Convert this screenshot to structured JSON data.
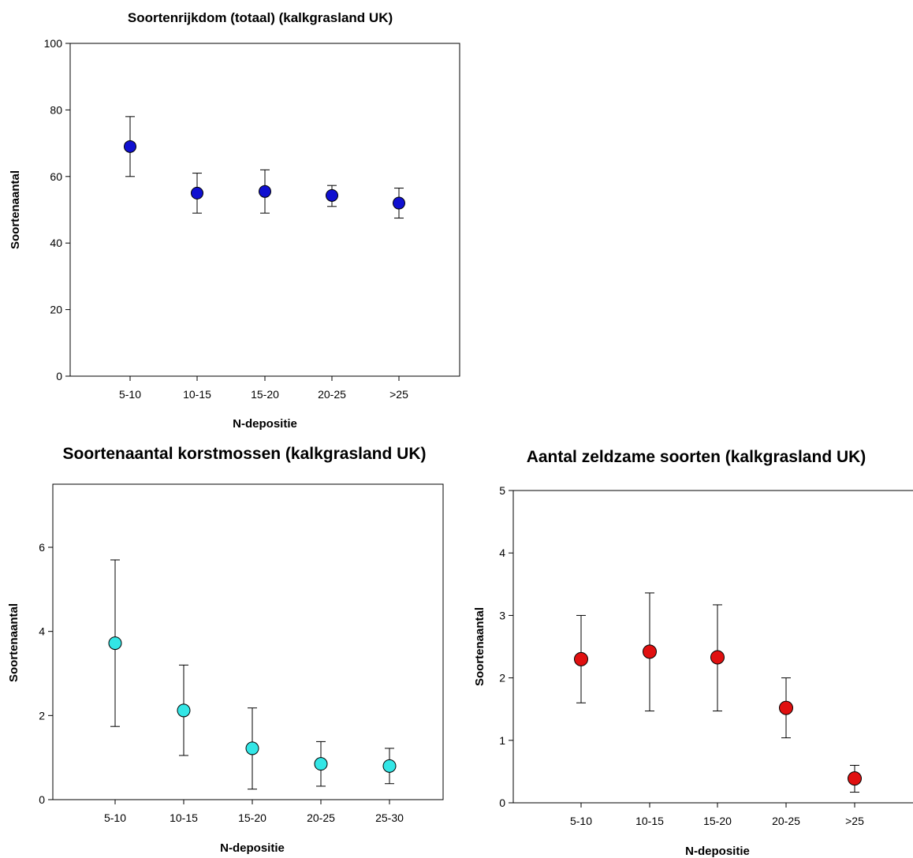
{
  "chart_data": [
    {
      "type": "scatter",
      "title": "Soortenrijkdom (totaal) (kalkgrasland UK)",
      "xlabel": "N-depositie",
      "ylabel": "Soortenaantal",
      "categories": [
        "5-10",
        "10-15",
        "15-20",
        "20-25",
        ">25"
      ],
      "values": [
        69,
        55,
        55.5,
        54.3,
        52
      ],
      "error_low": [
        60,
        49,
        49,
        51,
        47.5
      ],
      "error_high": [
        78,
        61,
        62,
        57.3,
        56.5
      ],
      "ylim": [
        0,
        100
      ],
      "yticks": [
        0,
        20,
        40,
        60,
        80,
        100
      ],
      "marker_color": "#1010d0",
      "grid": false
    },
    {
      "type": "scatter",
      "title": "Soortenaantal korstmossen (kalkgrasland UK)",
      "xlabel": "N-depositie",
      "ylabel": "Soortenaantal",
      "categories": [
        "5-10",
        "10-15",
        "15-20",
        "20-25",
        "25-30"
      ],
      "values": [
        3.72,
        2.12,
        1.22,
        0.85,
        0.8
      ],
      "error_low": [
        1.74,
        1.05,
        0.25,
        0.32,
        0.38
      ],
      "error_high": [
        5.7,
        3.2,
        2.18,
        1.38,
        1.22
      ],
      "ylim": [
        0,
        7.5
      ],
      "yticks": [
        0,
        2,
        4,
        6
      ],
      "marker_color": "#33e6e6",
      "grid": false
    },
    {
      "type": "scatter",
      "title": "Aantal zeldzame soorten (kalkgrasland UK)",
      "xlabel": "N-depositie",
      "ylabel": "Soortenaantal",
      "categories": [
        "5-10",
        "10-15",
        "15-20",
        "20-25",
        ">25"
      ],
      "values": [
        2.3,
        2.42,
        2.33,
        1.52,
        0.39
      ],
      "error_low": [
        1.6,
        1.47,
        1.47,
        1.04,
        0.17
      ],
      "error_high": [
        3.0,
        3.36,
        3.17,
        2.0,
        0.6
      ],
      "ylim": [
        0,
        5
      ],
      "yticks": [
        0,
        1,
        2,
        3,
        4,
        5
      ],
      "marker_color": "#e01010",
      "grid": false
    }
  ]
}
